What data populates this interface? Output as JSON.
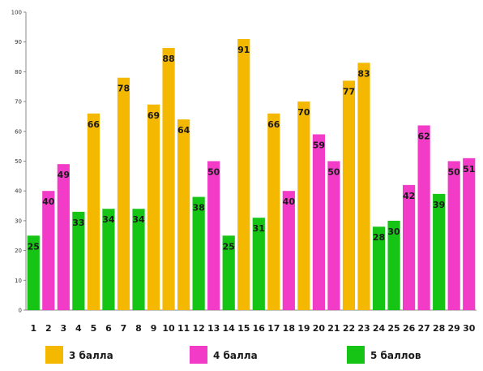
{
  "chart_data": {
    "type": "bar",
    "categories": [
      "1",
      "2",
      "3",
      "4",
      "5",
      "6",
      "7",
      "8",
      "9",
      "10",
      "11",
      "12",
      "13",
      "14",
      "15",
      "16",
      "17",
      "18",
      "19",
      "20",
      "21",
      "22",
      "23",
      "24",
      "25",
      "26",
      "27",
      "28",
      "29",
      "30"
    ],
    "values": [
      25,
      40,
      49,
      33,
      66,
      34,
      78,
      34,
      69,
      88,
      64,
      38,
      50,
      25,
      91,
      31,
      66,
      40,
      70,
      59,
      50,
      77,
      83,
      28,
      30,
      42,
      62,
      39,
      50,
      51
    ],
    "groups": [
      "5",
      "4",
      "4",
      "5",
      "3",
      "5",
      "3",
      "5",
      "3",
      "3",
      "3",
      "5",
      "4",
      "5",
      "3",
      "5",
      "3",
      "4",
      "3",
      "4",
      "4",
      "3",
      "3",
      "5",
      "5",
      "4",
      "4",
      "5",
      "4",
      "4"
    ],
    "ylim": [
      0,
      100
    ],
    "yticks": [
      0,
      10,
      20,
      30,
      40,
      50,
      60,
      70,
      80,
      90,
      100
    ],
    "grid": false,
    "legend_placement": "bottom",
    "legend": [
      {
        "key": "3",
        "label": "3 балла",
        "color": "#f5b800"
      },
      {
        "key": "4",
        "label": "4 балла",
        "color": "#f23cc8"
      },
      {
        "key": "5",
        "label": "5 баллов",
        "color": "#16c416"
      }
    ]
  }
}
